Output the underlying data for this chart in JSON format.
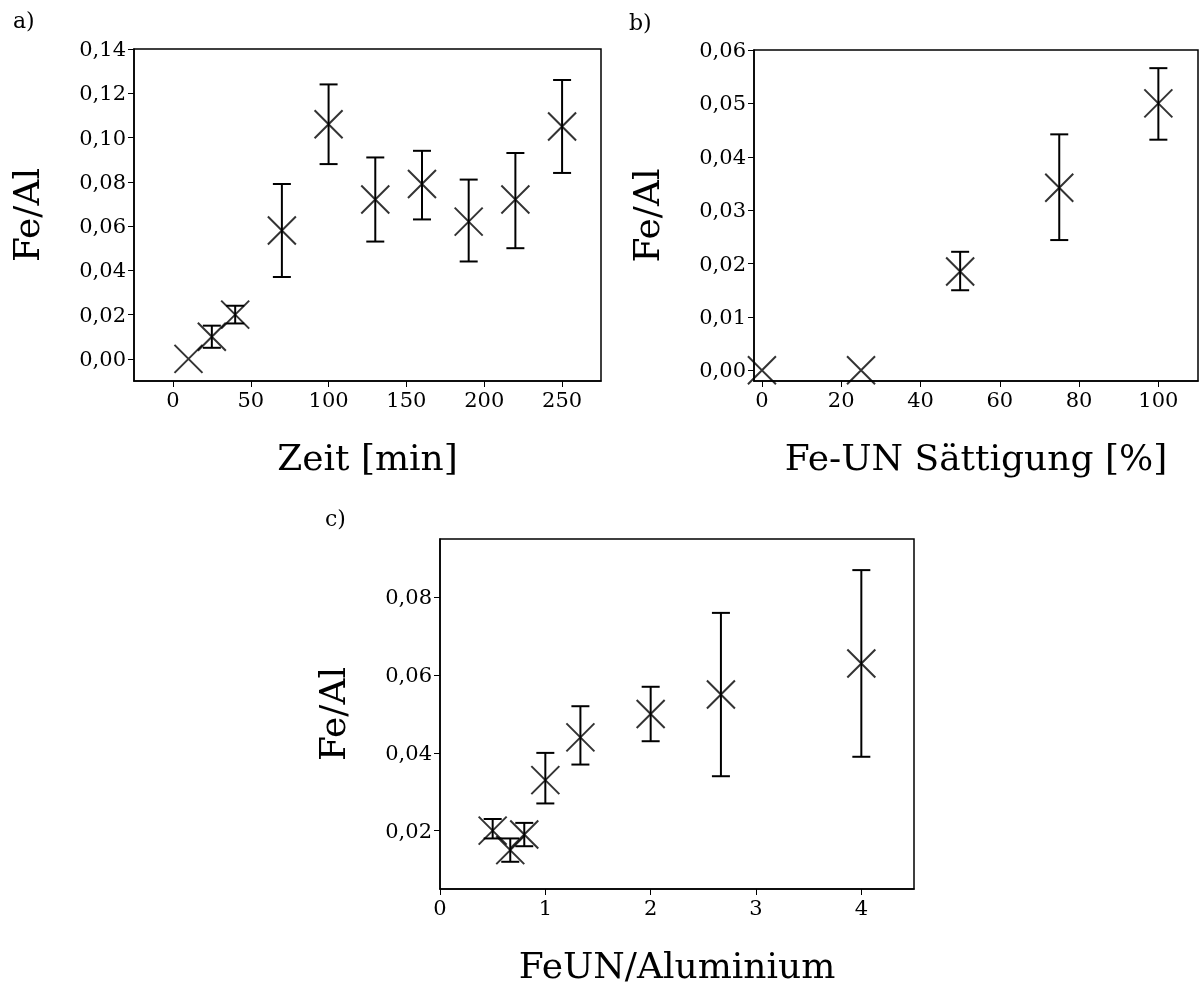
{
  "chart_data": [
    {
      "type": "scatter",
      "title": "a)",
      "xlabel": "Zeit [min]",
      "ylabel": "Fe/Al",
      "marker": "cross",
      "grid": false,
      "x": [
        10,
        25,
        40,
        70,
        100,
        130,
        160,
        190,
        220,
        250
      ],
      "values": [
        0,
        0.01,
        0.02,
        0.058,
        0.106,
        0.072,
        0.079,
        0.062,
        0.072,
        0.105
      ],
      "errors": [
        null,
        [
          0.005,
          0.015
        ],
        [
          0.016,
          0.024
        ],
        [
          0.037,
          0.079
        ],
        [
          0.088,
          0.124
        ],
        [
          0.053,
          0.091
        ],
        [
          0.063,
          0.094
        ],
        [
          0.044,
          0.081
        ],
        [
          0.05,
          0.093
        ],
        [
          0.084,
          0.126
        ]
      ],
      "xlim": [
        -25,
        275
      ],
      "xticks": [
        0,
        50,
        100,
        150,
        200,
        250
      ],
      "ylim": [
        -0.01,
        0.14
      ],
      "yticks": [
        {
          "value": 0,
          "label": "0,00"
        },
        {
          "value": 0.02,
          "label": "0,02"
        },
        {
          "value": 0.04,
          "label": "0,04"
        },
        {
          "value": 0.06,
          "label": "0,06"
        },
        {
          "value": 0.08,
          "label": "0,08"
        },
        {
          "value": 0.1,
          "label": "0,10"
        },
        {
          "value": 0.12,
          "label": "0,12"
        },
        {
          "value": 0.14,
          "label": "0,14"
        }
      ]
    },
    {
      "type": "scatter",
      "title": "b)",
      "xlabel": "Fe-UN Sättigung [%]",
      "ylabel": "Fe/Al",
      "marker": "cross",
      "grid": false,
      "x": [
        0,
        25,
        50,
        75,
        100
      ],
      "values": [
        0,
        0,
        0.0185,
        0.0342,
        0.05
      ],
      "errors": [
        null,
        null,
        [
          0.015,
          0.0222
        ],
        [
          0.0244,
          0.0442
        ],
        [
          0.0432,
          0.0566
        ]
      ],
      "xlim": [
        -2,
        110
      ],
      "xticks": [
        0,
        20,
        40,
        60,
        80,
        100
      ],
      "ylim": [
        -0.002,
        0.06
      ],
      "yticks": [
        {
          "value": 0,
          "label": "0,00"
        },
        {
          "value": 0.01,
          "label": "0,01"
        },
        {
          "value": 0.02,
          "label": "0,02"
        },
        {
          "value": 0.03,
          "label": "0,03"
        },
        {
          "value": 0.04,
          "label": "0,04"
        },
        {
          "value": 0.05,
          "label": "0,05"
        },
        {
          "value": 0.06,
          "label": "0,06"
        }
      ]
    },
    {
      "type": "scatter",
      "title": "c)",
      "xlabel": "FeUN/Aluminium",
      "ylabel": "Fe/Al",
      "marker": "cross",
      "grid": false,
      "x": [
        0.5,
        0.667,
        0.8,
        1,
        1.333,
        2,
        2.667,
        4
      ],
      "values": [
        0.02,
        0.015,
        0.019,
        0.033,
        0.044,
        0.05,
        0.055,
        0.063
      ],
      "errors": [
        [
          0.018,
          0.023
        ],
        [
          0.012,
          0.018
        ],
        [
          0.016,
          0.022
        ],
        [
          0.027,
          0.04
        ],
        [
          0.037,
          0.052
        ],
        [
          0.043,
          0.057
        ],
        [
          0.034,
          0.076
        ],
        [
          0.039,
          0.087
        ]
      ],
      "xlim": [
        0,
        4.5
      ],
      "xticks": [
        0,
        1,
        2,
        3,
        4
      ],
      "ylim": [
        0.005,
        0.095
      ],
      "yticks": [
        {
          "value": 0.02,
          "label": "0,02"
        },
        {
          "value": 0.04,
          "label": "0,04"
        },
        {
          "value": 0.06,
          "label": "0,06"
        },
        {
          "value": 0.08,
          "label": "0,08"
        }
      ]
    }
  ]
}
